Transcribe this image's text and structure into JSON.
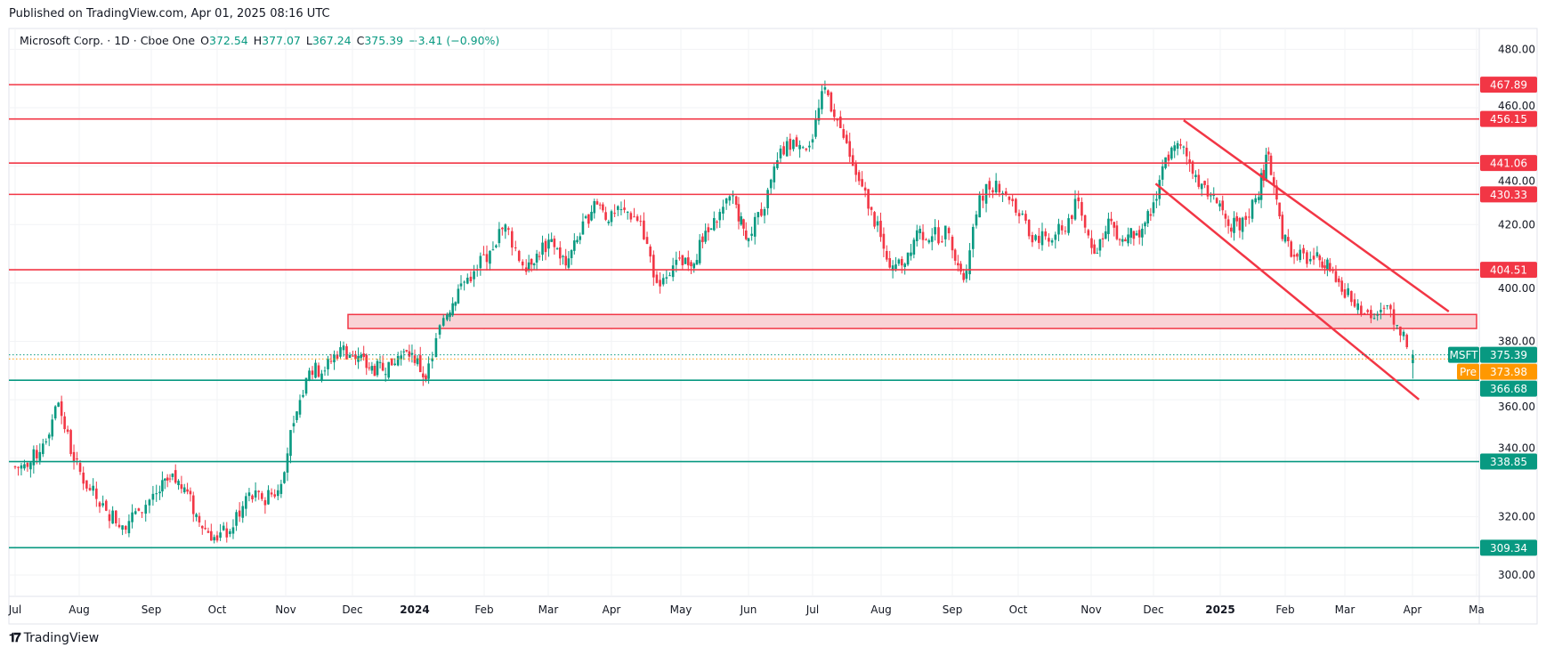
{
  "header": {
    "published": "Published on TradingView.com, Apr 01, 2025 08:16 UTC",
    "symbol": "Microsoft Corp. · 1D · Cboe One",
    "o_label": "O",
    "o": "372.54",
    "h_label": "H",
    "h": "377.07",
    "l_label": "L",
    "l": "367.24",
    "c_label": "C",
    "c": "375.39",
    "change": "−3.41 (−0.90%)"
  },
  "footer": {
    "brand": "TradingView",
    "logo_text": "TV"
  },
  "colors": {
    "up": "#089981",
    "down": "#f23645",
    "pre": "#ff9800",
    "zone_fill": "#f9d3d6"
  },
  "chart_data": {
    "type": "candlestick",
    "ylim": [
      290,
      488
    ],
    "grid": true,
    "y_ticks": [
      "300.00",
      "320.00",
      "340.00",
      "360.00",
      "380.00",
      "400.00",
      "420.00",
      "440.00",
      "460.00",
      "480.00"
    ],
    "x_tick_labels": [
      {
        "date": "2023-07-03",
        "label": "Jul"
      },
      {
        "date": "2023-08-01",
        "label": "Aug"
      },
      {
        "date": "2023-09-01",
        "label": "Sep"
      },
      {
        "date": "2023-10-02",
        "label": "Oct"
      },
      {
        "date": "2023-11-01",
        "label": "Nov"
      },
      {
        "date": "2023-12-01",
        "label": "Dec"
      },
      {
        "date": "2024-01-02",
        "label": "2024",
        "bold": true
      },
      {
        "date": "2024-02-01",
        "label": "Feb"
      },
      {
        "date": "2024-03-01",
        "label": "Mar"
      },
      {
        "date": "2024-04-01",
        "label": "Apr"
      },
      {
        "date": "2024-05-01",
        "label": "May"
      },
      {
        "date": "2024-06-03",
        "label": "Jun"
      },
      {
        "date": "2024-07-01",
        "label": "Jul"
      },
      {
        "date": "2024-08-01",
        "label": "Aug"
      },
      {
        "date": "2024-09-03",
        "label": "Sep"
      },
      {
        "date": "2024-10-01",
        "label": "Oct"
      },
      {
        "date": "2024-11-01",
        "label": "Nov"
      },
      {
        "date": "2024-12-02",
        "label": "Dec"
      },
      {
        "date": "2025-01-02",
        "label": "2025",
        "bold": true
      },
      {
        "date": "2025-02-03",
        "label": "Feb"
      },
      {
        "date": "2025-03-03",
        "label": "Mar"
      },
      {
        "date": "2025-04-01",
        "label": "Apr"
      },
      {
        "date": "2025-05-01",
        "label": "Ma"
      }
    ],
    "weekly_closes": [
      [
        "2023-07-03",
        337
      ],
      [
        "2023-07-10",
        345
      ],
      [
        "2023-07-17",
        359
      ],
      [
        "2023-07-24",
        339
      ],
      [
        "2023-07-31",
        329
      ],
      [
        "2023-08-07",
        322
      ],
      [
        "2023-08-14",
        317
      ],
      [
        "2023-08-21",
        322
      ],
      [
        "2023-08-28",
        328
      ],
      [
        "2023-09-05",
        333
      ],
      [
        "2023-09-11",
        330
      ],
      [
        "2023-09-18",
        318
      ],
      [
        "2023-09-25",
        313
      ],
      [
        "2023-10-02",
        315
      ],
      [
        "2023-10-09",
        327
      ],
      [
        "2023-10-16",
        326
      ],
      [
        "2023-10-23",
        329
      ],
      [
        "2023-10-30",
        352
      ],
      [
        "2023-11-06",
        370
      ],
      [
        "2023-11-13",
        370
      ],
      [
        "2023-11-20",
        378
      ],
      [
        "2023-11-27",
        374
      ],
      [
        "2023-12-04",
        371
      ],
      [
        "2023-12-11",
        370
      ],
      [
        "2023-12-18",
        375
      ],
      [
        "2023-12-26",
        376
      ],
      [
        "2024-01-02",
        367
      ],
      [
        "2024-01-08",
        388
      ],
      [
        "2024-01-16",
        398
      ],
      [
        "2024-01-22",
        404
      ],
      [
        "2024-01-29",
        411
      ],
      [
        "2024-02-05",
        420
      ],
      [
        "2024-02-12",
        406
      ],
      [
        "2024-02-20",
        410
      ],
      [
        "2024-02-26",
        415
      ],
      [
        "2024-03-04",
        406
      ],
      [
        "2024-03-11",
        416
      ],
      [
        "2024-03-18",
        428
      ],
      [
        "2024-03-25",
        421
      ],
      [
        "2024-04-01",
        425
      ],
      [
        "2024-04-08",
        421
      ],
      [
        "2024-04-15",
        400
      ],
      [
        "2024-04-22",
        406
      ],
      [
        "2024-04-29",
        406
      ],
      [
        "2024-05-06",
        414
      ],
      [
        "2024-05-13",
        421
      ],
      [
        "2024-05-20",
        430
      ],
      [
        "2024-05-28",
        415
      ],
      [
        "2024-06-03",
        423
      ],
      [
        "2024-06-10",
        442
      ],
      [
        "2024-06-17",
        449
      ],
      [
        "2024-06-24",
        447
      ],
      [
        "2024-07-01",
        467
      ],
      [
        "2024-07-08",
        453
      ],
      [
        "2024-07-15",
        437
      ],
      [
        "2024-07-22",
        425
      ],
      [
        "2024-07-29",
        408
      ],
      [
        "2024-08-05",
        406
      ],
      [
        "2024-08-12",
        418
      ],
      [
        "2024-08-19",
        416
      ],
      [
        "2024-08-26",
        417
      ],
      [
        "2024-09-03",
        401
      ],
      [
        "2024-09-09",
        430
      ],
      [
        "2024-09-16",
        435
      ],
      [
        "2024-09-23",
        428
      ],
      [
        "2024-09-30",
        416
      ],
      [
        "2024-10-07",
        416
      ],
      [
        "2024-10-14",
        418
      ],
      [
        "2024-10-21",
        428
      ],
      [
        "2024-10-28",
        410
      ],
      [
        "2024-11-04",
        422
      ],
      [
        "2024-11-11",
        415
      ],
      [
        "2024-11-18",
        417
      ],
      [
        "2024-11-25",
        423
      ],
      [
        "2024-12-02",
        443
      ],
      [
        "2024-12-09",
        447
      ],
      [
        "2024-12-16",
        437
      ],
      [
        "2024-12-23",
        430
      ],
      [
        "2024-12-30",
        422
      ],
      [
        "2025-01-06",
        418
      ],
      [
        "2025-01-13",
        429
      ],
      [
        "2025-01-21",
        444
      ],
      [
        "2025-01-27",
        415
      ],
      [
        "2025-02-03",
        409
      ],
      [
        "2025-02-10",
        408
      ],
      [
        "2025-02-18",
        408
      ],
      [
        "2025-02-24",
        397
      ],
      [
        "2025-03-03",
        393
      ],
      [
        "2025-03-10",
        388
      ],
      [
        "2025-03-17",
        391
      ],
      [
        "2025-03-24",
        378
      ]
    ],
    "last_candle": {
      "date": "2025-03-31",
      "open": 372.54,
      "high": 377.07,
      "low": 367.24,
      "close": 375.39
    },
    "horizontal_levels": [
      {
        "price": "467.89",
        "color": "down"
      },
      {
        "price": "456.15",
        "color": "down"
      },
      {
        "price": "441.06",
        "color": "down"
      },
      {
        "price": "430.33",
        "color": "down"
      },
      {
        "price": "404.51",
        "color": "down"
      },
      {
        "price": "366.68",
        "color": "up"
      },
      {
        "price": "338.85",
        "color": "up"
      },
      {
        "price": "309.34",
        "color": "up"
      }
    ],
    "zone": {
      "from": "2023-11-29",
      "to": "2025-05-01",
      "low": 384.4,
      "high": 389.2
    },
    "channel": [
      {
        "from": [
          "2024-12-16",
          455.7
        ],
        "to": [
          "2025-04-18",
          390.2
        ]
      },
      {
        "from": [
          "2024-12-03",
          434.0
        ],
        "to": [
          "2025-04-04",
          360.1
        ]
      }
    ],
    "last_price": {
      "symbol": "MSFT",
      "price": "375.39"
    },
    "pre_market": {
      "label": "Pre",
      "price": "373.98"
    }
  }
}
